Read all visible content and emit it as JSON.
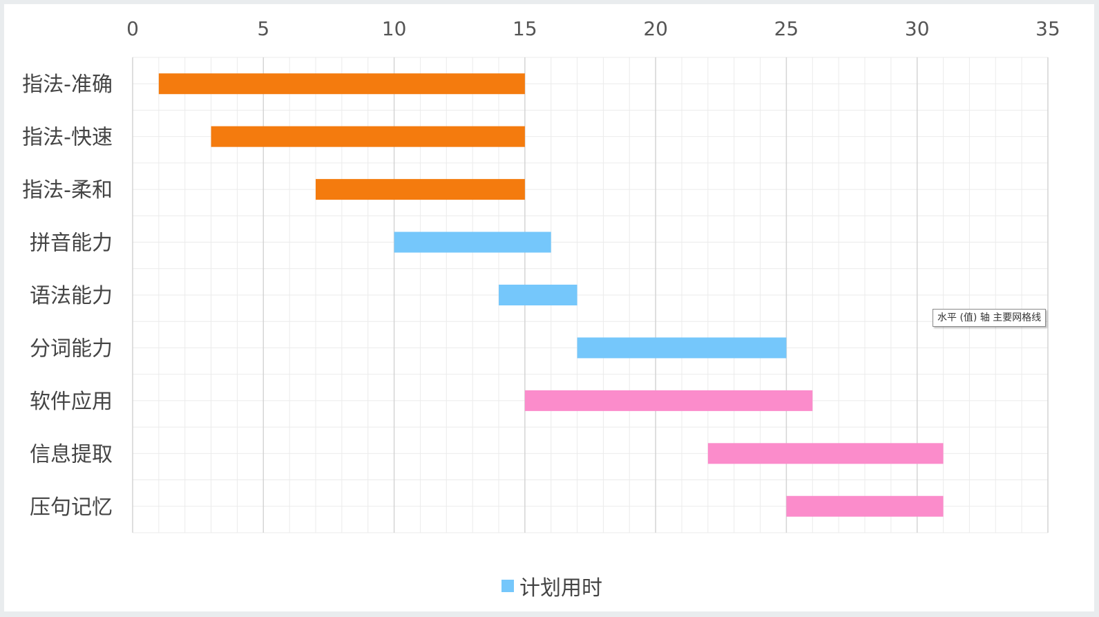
{
  "chart_data": {
    "type": "bar",
    "orientation": "horizontal",
    "subtype": "gantt",
    "xlim": [
      0,
      35
    ],
    "x_ticks": [
      0,
      5,
      10,
      15,
      20,
      25,
      30,
      35
    ],
    "categories": [
      "指法-准确",
      "指法-快速",
      "指法-柔和",
      "拼音能力",
      "语法能力",
      "分词能力",
      "软件应用",
      "信息提取",
      "压句记忆"
    ],
    "start": [
      1,
      3,
      7,
      10,
      14,
      17,
      15,
      22,
      25
    ],
    "duration": [
      14,
      12,
      8,
      6,
      3,
      8,
      11,
      9,
      6
    ],
    "bar_colors": [
      "#f47b0e",
      "#f47b0e",
      "#f47b0e",
      "#75c7fb",
      "#75c7fb",
      "#75c7fb",
      "#fb8ccb",
      "#fb8ccb",
      "#fb8ccb"
    ],
    "legend": [
      {
        "name": "计划用时",
        "color": "#75c7fb"
      }
    ],
    "legend_position": "bottom",
    "grid": true,
    "tooltip": "水平 (值) 轴 主要网格线"
  }
}
